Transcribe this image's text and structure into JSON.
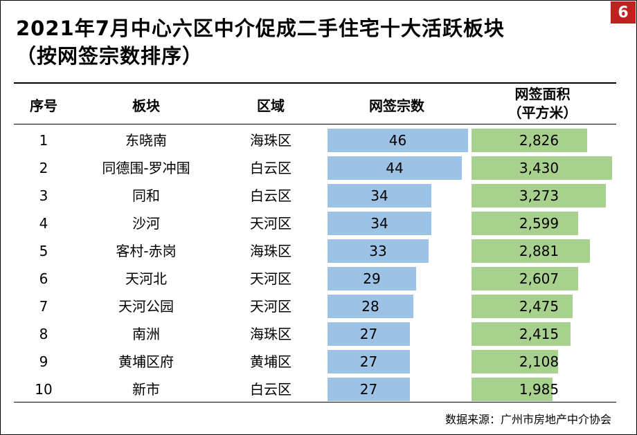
{
  "page_number": "6",
  "title_line1": "2021年7月中心六区中介促成二手住宅十大活跃板块",
  "title_line2": "（按网签宗数排序）",
  "headers": {
    "rank": "序号",
    "block": "板块",
    "district": "区域",
    "count": "网签宗数",
    "area_line1": "网签面积",
    "area_line2": "（平方米）"
  },
  "source": "数据来源：广州市房地产中介协会",
  "colors": {
    "count_bar": "#9cc2e5",
    "area_bar": "#a9d18e",
    "badge": "#c0211f"
  },
  "chart_data": {
    "type": "table",
    "rows": [
      {
        "rank": "1",
        "block": "东晓南",
        "district": "海珠区",
        "count": 46,
        "area": 2826,
        "area_label": "2,826"
      },
      {
        "rank": "2",
        "block": "同德围-罗冲围",
        "district": "白云区",
        "count": 44,
        "area": 3430,
        "area_label": "3,430"
      },
      {
        "rank": "3",
        "block": "同和",
        "district": "白云区",
        "count": 34,
        "area": 3273,
        "area_label": "3,273"
      },
      {
        "rank": "4",
        "block": "沙河",
        "district": "天河区",
        "count": 34,
        "area": 2599,
        "area_label": "2,599"
      },
      {
        "rank": "5",
        "block": "客村-赤岗",
        "district": "海珠区",
        "count": 33,
        "area": 2881,
        "area_label": "2,881"
      },
      {
        "rank": "6",
        "block": "天河北",
        "district": "天河区",
        "count": 29,
        "area": 2607,
        "area_label": "2,607"
      },
      {
        "rank": "7",
        "block": "天河公园",
        "district": "天河区",
        "count": 28,
        "area": 2475,
        "area_label": "2,475"
      },
      {
        "rank": "8",
        "block": "南洲",
        "district": "海珠区",
        "count": 27,
        "area": 2415,
        "area_label": "2,415"
      },
      {
        "rank": "9",
        "block": "黄埔区府",
        "district": "黄埔区",
        "count": 27,
        "area": 2108,
        "area_label": "2,108"
      },
      {
        "rank": "10",
        "block": "新市",
        "district": "白云区",
        "count": 27,
        "area": 1985,
        "area_label": "1,985"
      }
    ]
  }
}
